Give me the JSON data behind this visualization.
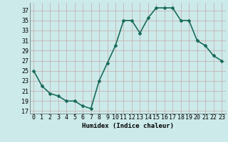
{
  "x": [
    0,
    1,
    2,
    3,
    4,
    5,
    6,
    7,
    8,
    9,
    10,
    11,
    12,
    13,
    14,
    15,
    16,
    17,
    18,
    19,
    20,
    21,
    22,
    23
  ],
  "y": [
    25,
    22,
    20.5,
    20,
    19,
    19,
    18,
    17.5,
    23,
    26.5,
    30,
    35,
    35,
    32.5,
    35.5,
    37.5,
    37.5,
    37.5,
    35,
    35,
    31,
    30,
    28,
    27
  ],
  "line_color": "#1a6b5a",
  "marker": "D",
  "marker_size": 2.0,
  "bg_color": "#cceaea",
  "grid_color_v": "#c4a8a8",
  "grid_color_h": "#c4a8a8",
  "xlabel": "Humidex (Indice chaleur)",
  "ylim": [
    16.5,
    38.5
  ],
  "xlim": [
    -0.5,
    23.5
  ],
  "yticks": [
    17,
    19,
    21,
    23,
    25,
    27,
    29,
    31,
    33,
    35,
    37
  ],
  "xtick_labels": [
    "0",
    "1",
    "2",
    "3",
    "4",
    "5",
    "6",
    "7",
    "8",
    "9",
    "10",
    "11",
    "12",
    "13",
    "14",
    "15",
    "16",
    "17",
    "18",
    "19",
    "20",
    "21",
    "22",
    "23"
  ],
  "xlabel_fontsize": 6.5,
  "tick_fontsize": 6,
  "line_width": 1.2
}
